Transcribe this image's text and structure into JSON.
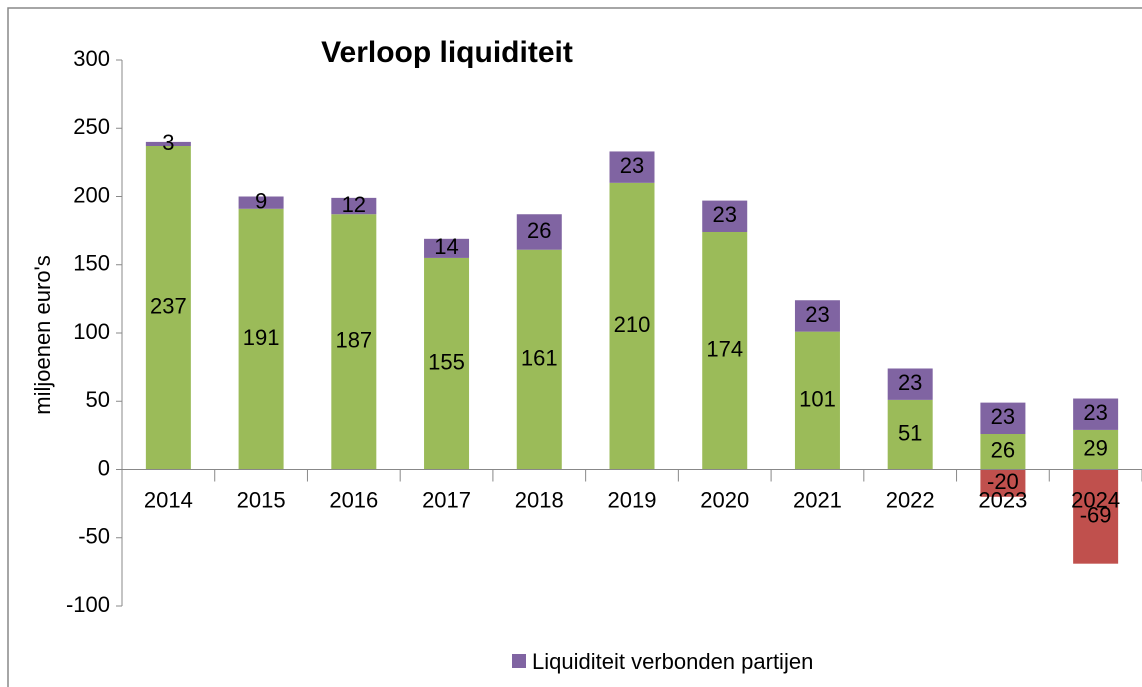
{
  "chart_data": {
    "type": "bar",
    "stacked": true,
    "title": "Verloop liquiditeit",
    "y_label": "miljoenen euro's",
    "categories": [
      "2014",
      "2015",
      "2016",
      "2017",
      "2018",
      "2019",
      "2020",
      "2021",
      "2022",
      "2023",
      "2024"
    ],
    "series": [
      {
        "color": "#9bbb59",
        "values": [
          237,
          191,
          187,
          155,
          161,
          210,
          174,
          101,
          51,
          26,
          29
        ]
      },
      {
        "name": "Liquiditeit verbonden partijen",
        "color": "#8064a2",
        "values": [
          3,
          9,
          12,
          14,
          26,
          23,
          23,
          23,
          23,
          23,
          23
        ]
      },
      {
        "color": "#c0504d",
        "values": [
          null,
          null,
          null,
          null,
          null,
          null,
          null,
          null,
          null,
          -20,
          -69
        ]
      }
    ],
    "ylim": [
      -100,
      300
    ],
    "yticks": [
      -100,
      -50,
      0,
      50,
      100,
      150,
      200,
      250,
      300
    ],
    "legend": "bottom"
  }
}
